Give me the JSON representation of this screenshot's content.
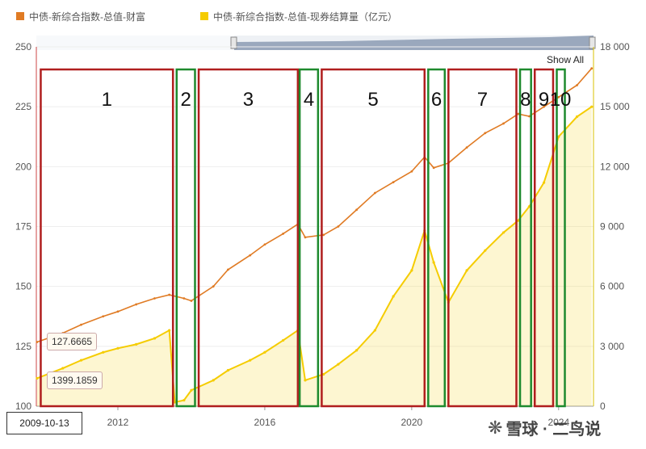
{
  "legend": {
    "series1_label": "中债-新综合指数-总值-财富",
    "series2_label": "中债-新综合指数-总值-现券结算量（亿元）",
    "series1_color": "#e07b24",
    "series2_color": "#f5cc00"
  },
  "controls": {
    "show_all": "Show All",
    "start_date": "2009-10-13",
    "tooltip_index": "127.6665",
    "tooltip_volume": "1399.1859"
  },
  "watermark": {
    "logo": "❋",
    "text": "雪球 · 二鸟说"
  },
  "chart_data": {
    "type": "line",
    "x_ticks": [
      "2012",
      "2016",
      "2020",
      "2024"
    ],
    "y_left_ticks": [
      "250",
      "225",
      "200",
      "175",
      "150",
      "125",
      "100"
    ],
    "y_right_ticks": [
      "18 000",
      "15 000",
      "12 000",
      "9 000",
      "6 000",
      "3 000",
      "0"
    ],
    "y_left_lim": [
      100,
      250
    ],
    "y_right_lim": [
      0,
      18000
    ],
    "x_lim": [
      2009.78,
      2024.95
    ],
    "series": [
      {
        "name": "中债-新综合指数-总值-财富",
        "axis": "left",
        "color": "#e07b24",
        "x": [
          2009.8,
          2010.5,
          2011.0,
          2011.6,
          2012.0,
          2012.5,
          2013.0,
          2013.4,
          2013.8,
          2014.0,
          2014.6,
          2015.0,
          2015.6,
          2016.0,
          2016.5,
          2016.9,
          2017.1,
          2017.6,
          2018.0,
          2018.5,
          2019.0,
          2019.5,
          2020.0,
          2020.35,
          2020.6,
          2021.0,
          2021.5,
          2022.0,
          2022.5,
          2022.9,
          2023.2,
          2023.6,
          2024.0,
          2024.5,
          2024.9
        ],
        "values": [
          126.8,
          130.5,
          134.0,
          137.5,
          139.5,
          142.5,
          145.0,
          146.5,
          145.0,
          144.0,
          150.0,
          157.0,
          163.0,
          167.5,
          172.0,
          176.0,
          170.5,
          171.5,
          175.0,
          182.0,
          189.0,
          193.5,
          198.0,
          204.0,
          199.5,
          201.5,
          208.0,
          214.0,
          218.0,
          222.0,
          221.0,
          225.0,
          229.0,
          234.0,
          241.0
        ]
      },
      {
        "name": "中债-新综合指数-总值-现券结算量（亿元）",
        "axis": "right",
        "color": "#f5cc00",
        "x": [
          2009.8,
          2010.5,
          2011.0,
          2011.6,
          2012.0,
          2012.5,
          2013.0,
          2013.4,
          2013.55,
          2013.8,
          2014.0,
          2014.6,
          2015.0,
          2015.6,
          2016.0,
          2016.5,
          2016.9,
          2017.1,
          2017.6,
          2018.0,
          2018.5,
          2019.0,
          2019.5,
          2020.0,
          2020.35,
          2020.6,
          2021.0,
          2021.5,
          2022.0,
          2022.5,
          2022.9,
          2023.2,
          2023.6,
          2024.0,
          2024.5,
          2024.9
        ],
        "values": [
          1399,
          1900,
          2300,
          2700,
          2900,
          3100,
          3400,
          3800,
          200,
          300,
          800,
          1300,
          1800,
          2300,
          2700,
          3300,
          3800,
          1300,
          1600,
          2100,
          2800,
          3800,
          5500,
          6800,
          8800,
          7200,
          5200,
          6800,
          7800,
          8700,
          9300,
          10000,
          11200,
          13500,
          14500,
          15000
        ]
      }
    ]
  },
  "annotations": [
    {
      "label": "1",
      "color": "red",
      "start": 2009.9,
      "end": 2013.5
    },
    {
      "label": "2",
      "color": "green",
      "start": 2013.6,
      "end": 2014.1
    },
    {
      "label": "3",
      "color": "red",
      "start": 2014.2,
      "end": 2016.9
    },
    {
      "label": "4",
      "color": "green",
      "start": 2016.95,
      "end": 2017.45
    },
    {
      "label": "5",
      "color": "red",
      "start": 2017.55,
      "end": 2020.35
    },
    {
      "label": "6",
      "color": "green",
      "start": 2020.45,
      "end": 2020.9
    },
    {
      "label": "7",
      "color": "red",
      "start": 2021.0,
      "end": 2022.85
    },
    {
      "label": "8",
      "color": "green",
      "start": 2022.95,
      "end": 2023.25
    },
    {
      "label": "9",
      "color": "red",
      "start": 2023.35,
      "end": 2023.85
    },
    {
      "label": "10",
      "color": "green",
      "start": 2023.95,
      "end": 2024.15
    }
  ]
}
